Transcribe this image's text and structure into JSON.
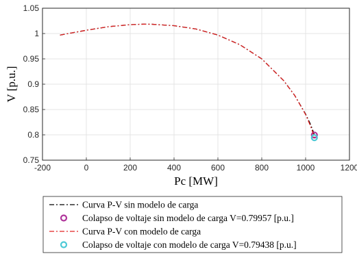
{
  "chart_data": {
    "type": "line",
    "xlabel": "Pc [MW]",
    "ylabel": "V [p.u.]",
    "xlim": [
      -200,
      1200
    ],
    "ylim": [
      0.75,
      1.05
    ],
    "xticks": [
      -200,
      0,
      200,
      400,
      600,
      800,
      1000,
      1200
    ],
    "xtick_labels": [
      "-200",
      "0",
      "200",
      "400",
      "600",
      "800",
      "1000",
      "1200"
    ],
    "yticks": [
      0.75,
      0.8,
      0.85,
      0.9,
      0.95,
      1.0,
      1.05
    ],
    "ytick_labels": [
      "0.75",
      "0.8",
      "0.85",
      "0.9",
      "0.95",
      "1",
      "1.05"
    ],
    "grid": true,
    "legend_position": "below",
    "series": [
      {
        "name": "Curva P-V sin modelo de carga",
        "kind": "line",
        "color": "#000000",
        "dash": "dashdot",
        "x": [
          -120,
          0,
          100,
          200,
          260,
          300,
          400,
          500,
          600,
          700,
          800,
          900,
          950,
          1000,
          1020,
          1030,
          1036,
          1040
        ],
        "y": [
          0.997,
          1.0065,
          1.0135,
          1.0175,
          1.0185,
          1.0183,
          1.0155,
          1.009,
          0.997,
          0.978,
          0.95,
          0.907,
          0.878,
          0.841,
          0.823,
          0.812,
          0.805,
          0.7996
        ]
      },
      {
        "name": "Colapso de voltaje sin modelo de carga V=0.79957 [p.u.]",
        "kind": "marker",
        "color": "#b0359b",
        "x": [
          1040
        ],
        "y": [
          0.79957
        ]
      },
      {
        "name": "Curva P-V con modelo de carga",
        "kind": "line",
        "color": "#e02020",
        "dash": "dashdot",
        "x": [
          -120,
          0,
          100,
          200,
          260,
          300,
          400,
          500,
          600,
          700,
          800,
          900,
          950,
          1000,
          1020,
          1030,
          1036,
          1040
        ],
        "y": [
          0.997,
          1.0065,
          1.0135,
          1.0175,
          1.0185,
          1.0183,
          1.0155,
          1.009,
          0.997,
          0.978,
          0.95,
          0.907,
          0.878,
          0.84,
          0.82,
          0.808,
          0.8,
          0.7944
        ]
      },
      {
        "name": "Colapso de voltaje con modelo de carga V=0.79438 [p.u.]",
        "kind": "marker",
        "color": "#4dc9d6",
        "x": [
          1040
        ],
        "y": [
          0.79438
        ]
      }
    ]
  }
}
